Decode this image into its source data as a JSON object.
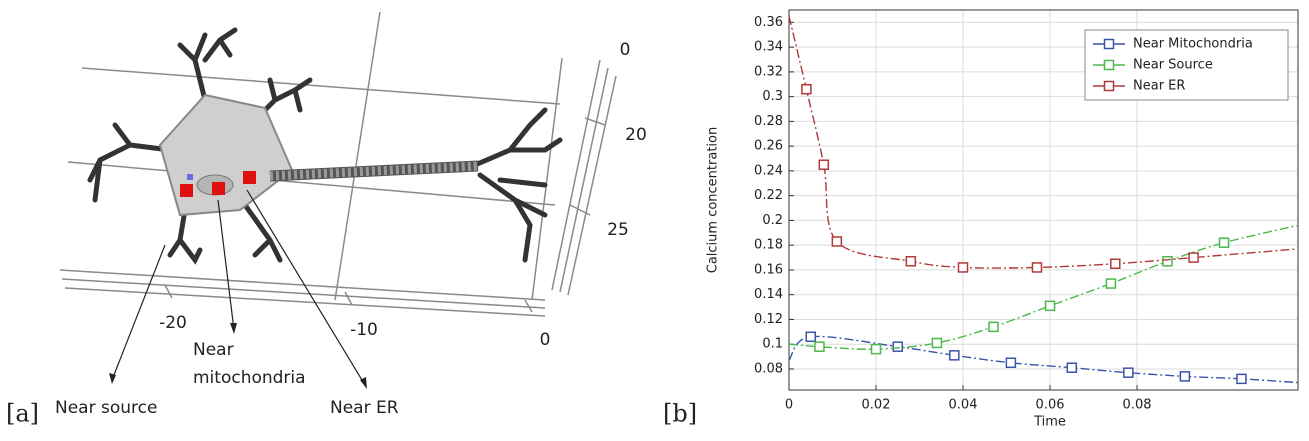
{
  "panels": [
    "[a]",
    "[b]"
  ],
  "diagram": {
    "axis_numbers": [
      "0",
      "20",
      "25",
      "-20",
      "-10",
      "0"
    ],
    "labels": {
      "source": "Near source",
      "mitochondria": [
        "Near",
        "mitochondria"
      ],
      "er": "Near ER"
    }
  },
  "chart_data": {
    "type": "line",
    "xlabel": "Time",
    "ylabel": "Calcium concentration",
    "xlim": [
      0,
      0.117
    ],
    "ylim": [
      0.063,
      0.37
    ],
    "xticks": [
      0,
      0.02,
      0.04,
      0.06,
      0.08
    ],
    "yticks": [
      0.08,
      0.1,
      0.12,
      0.14,
      0.16,
      0.18,
      0.2,
      0.22,
      0.24,
      0.26,
      0.28,
      0.3,
      0.32,
      0.34,
      0.36
    ],
    "grid": true,
    "legend": "upper-right",
    "series": [
      {
        "name": "Near Mitochondria",
        "color": "#3a55a8",
        "x": [
          0,
          0.005,
          0.025,
          0.038,
          0.051,
          0.065,
          0.078,
          0.091,
          0.104,
          0.117
        ],
        "values": [
          0.087,
          0.106,
          0.098,
          0.091,
          0.085,
          0.081,
          0.077,
          0.074,
          0.072,
          0.069
        ]
      },
      {
        "name": "Near Source",
        "color": "#4cb84c",
        "x": [
          0,
          0.007,
          0.02,
          0.034,
          0.047,
          0.06,
          0.074,
          0.087,
          0.1,
          0.117
        ],
        "values": [
          0.1,
          0.098,
          0.096,
          0.101,
          0.114,
          0.131,
          0.149,
          0.167,
          0.182,
          0.196
        ]
      },
      {
        "name": "Near ER",
        "color": "#b03a3a",
        "x": [
          0,
          0.004,
          0.008,
          0.011,
          0.028,
          0.04,
          0.057,
          0.075,
          0.093,
          0.117
        ],
        "values": [
          0.365,
          0.306,
          0.245,
          0.183,
          0.167,
          0.162,
          0.162,
          0.165,
          0.17,
          0.177
        ]
      }
    ]
  }
}
